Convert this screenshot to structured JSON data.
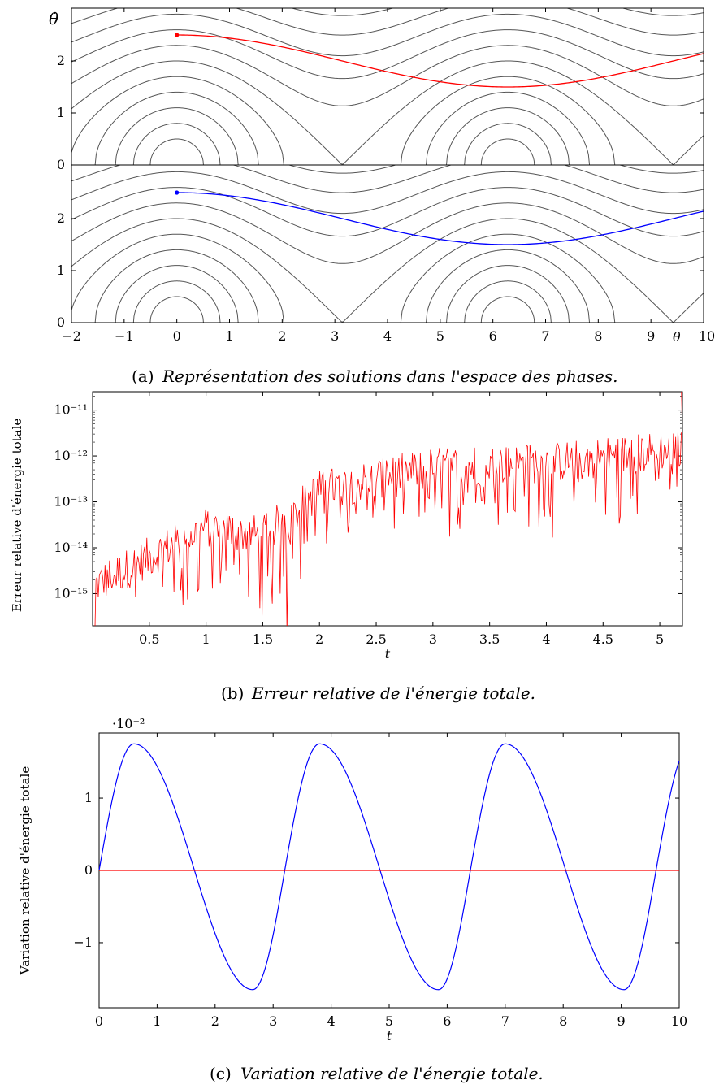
{
  "chart_data": [
    {
      "type": "line",
      "panel": "a",
      "caption_prefix": "(a)",
      "caption": "Représentation des solutions dans l'espace des phases.",
      "xlabel": "θ",
      "ylabel": "θ̇",
      "xlim": [
        -2,
        10
      ],
      "ylim": [
        0,
        2.7
      ],
      "x_ticks": [
        "−2",
        "−1",
        "0",
        "1",
        "2",
        "3",
        "4",
        "5",
        "6",
        "7",
        "8",
        "9",
        "10"
      ],
      "y_ticks": [
        "0",
        "1",
        "2"
      ],
      "subpanels": 2,
      "orbit_levels": [
        0.5,
        0.8,
        1.1,
        1.4,
        1.7,
        2.0,
        2.3,
        2.6,
        2.9,
        3.2,
        3.5,
        3.8
      ],
      "grid": false,
      "series": [
        {
          "color": "#ff0000",
          "x_start": 0,
          "y_start": 2.5,
          "y_min": 1.5,
          "y_max": 2.5
        },
        {
          "color": "#0000ff",
          "x_start": 0,
          "y_start": 2.5,
          "y_min": 1.5,
          "y_max": 2.5
        }
      ]
    },
    {
      "type": "line",
      "panel": "b",
      "caption_prefix": "(b)",
      "caption": "Erreur relative de l'énergie totale.",
      "xlabel": "t",
      "ylabel": "Erreur relative d'énergie totale",
      "xlim": [
        0,
        5.2
      ],
      "ylim_log10": [
        -15.7,
        -10.6
      ],
      "yscale": "log",
      "x_ticks": [
        "0.5",
        "1",
        "1.5",
        "2",
        "2.5",
        "3",
        "3.5",
        "4",
        "4.5",
        "5"
      ],
      "y_ticks": [
        "10⁻¹⁵",
        "10⁻¹⁴",
        "10⁻¹³",
        "10⁻¹²",
        "10⁻¹¹"
      ],
      "grid": false,
      "series": [
        {
          "color": "#ff0000",
          "trend_t": [
            0,
            1,
            1.5,
            2,
            3,
            4,
            5.2
          ],
          "trend_log10": [
            -14.6,
            -13.3,
            -13.5,
            -12.5,
            -12.0,
            -11.9,
            -11.6
          ]
        }
      ]
    },
    {
      "type": "line",
      "panel": "c",
      "caption_prefix": "(c)",
      "caption": "Variation relative de l'énergie totale.",
      "xlabel": "t",
      "ylabel": "Variation relative d'énergie totale",
      "y_multiplier": "·10⁻²",
      "xlim": [
        0,
        10
      ],
      "ylim": [
        -1.9,
        1.9
      ],
      "x_ticks": [
        "0",
        "1",
        "2",
        "3",
        "4",
        "5",
        "6",
        "7",
        "8",
        "9",
        "10"
      ],
      "y_ticks": [
        "−1",
        "0",
        "1"
      ],
      "grid": false,
      "series": [
        {
          "color": "#0000ff",
          "shape": "periodic",
          "period": 3.2,
          "peak_t": 0.6,
          "peak": 1.75,
          "trough_t": 2.65,
          "trough": -1.65
        },
        {
          "color": "#ff0000",
          "shape": "constant",
          "value": 0
        }
      ]
    }
  ]
}
